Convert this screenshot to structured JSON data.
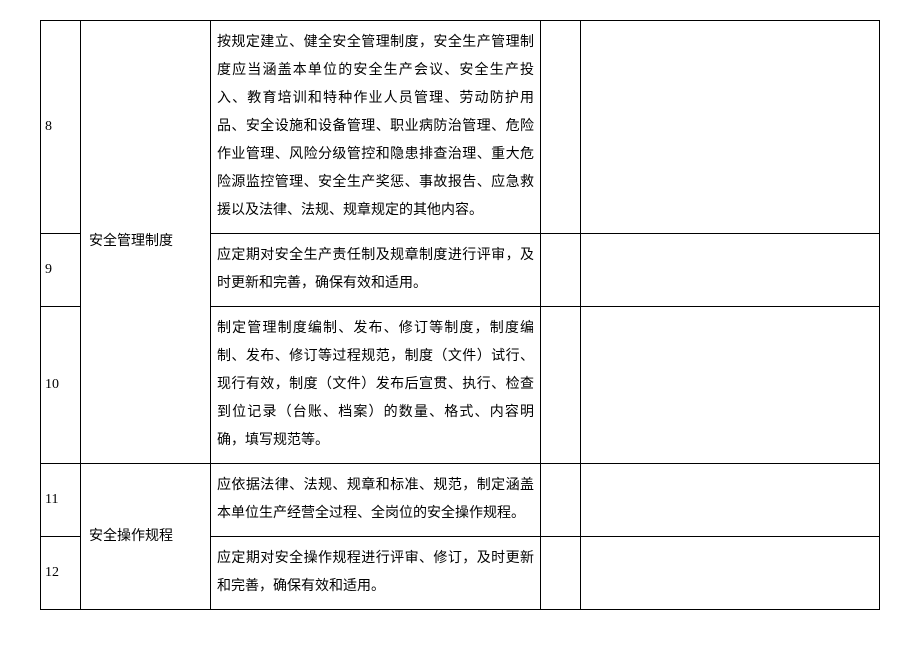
{
  "table": {
    "border_color": "#000000",
    "background_color": "#ffffff",
    "text_color": "#000000",
    "font_size": 14,
    "line_height": 2.0,
    "columns": {
      "num_width": 40,
      "cat_width": 130,
      "desc_width": 330,
      "empty1_width": 40
    },
    "rows": [
      {
        "num": "8",
        "category": "安全管理制度",
        "category_rowspan": 3,
        "desc": "按规定建立、健全安全管理制度，安全生产管理制度应当涵盖本单位的安全生产会议、安全生产投入、教育培训和特种作业人员管理、劳动防护用品、安全设施和设备管理、职业病防治管理、危险作业管理、风险分级管控和隐患排查治理、重大危险源监控管理、安全生产奖惩、事故报告、应急救援以及法律、法规、规章规定的其他内容。"
      },
      {
        "num": "9",
        "desc": "应定期对安全生产责任制及规章制度进行评审，及时更新和完善，确保有效和适用。"
      },
      {
        "num": "10",
        "desc": "制定管理制度编制、发布、修订等制度，制度编制、发布、修订等过程规范，制度（文件）试行、现行有效，制度（文件）发布后宣贯、执行、检查到位记录（台账、档案）的数量、格式、内容明确，填写规范等。"
      },
      {
        "num": "11",
        "category": "安全操作规程",
        "category_rowspan": 2,
        "desc": "应依据法律、法规、规章和标准、规范，制定涵盖本单位生产经营全过程、全岗位的安全操作规程。"
      },
      {
        "num": "12",
        "desc": "应定期对安全操作规程进行评审、修订，及时更新和完善，确保有效和适用。"
      }
    ]
  }
}
